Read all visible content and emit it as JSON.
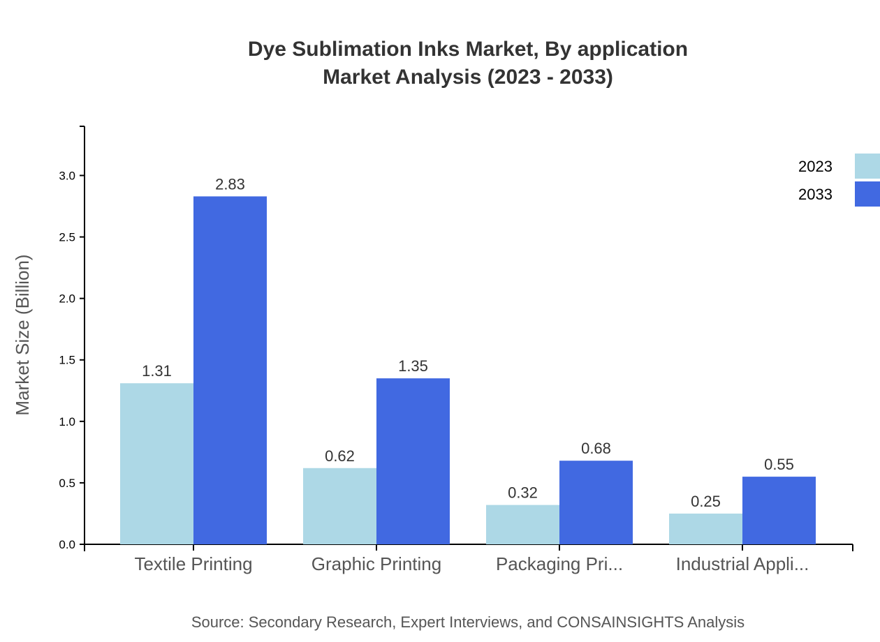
{
  "chart_data": {
    "type": "bar",
    "title": [
      "Dye Sublimation Inks Market, By application",
      "Market Analysis (2023 - 2033)"
    ],
    "xlabel": "",
    "ylabel": "Market Size (Billion)",
    "categories": [
      "Textile Printing",
      "Graphic Printing",
      "Packaging Pri...",
      "Industrial Appli..."
    ],
    "series": [
      {
        "name": "2023",
        "color": "#add8e6",
        "values": [
          1.31,
          0.62,
          0.32,
          0.25
        ]
      },
      {
        "name": "2033",
        "color": "#4169e1",
        "values": [
          2.83,
          1.35,
          0.68,
          0.55
        ]
      }
    ],
    "ylim": [
      0,
      3.4
    ],
    "yticks": [
      "0.0",
      "0.5",
      "1.0",
      "1.5",
      "2.0",
      "2.5",
      "3.0"
    ],
    "grid": false,
    "legend_position": "top-right",
    "source": "Source: Secondary Research, Expert Interviews, and CONSAINSIGHTS Analysis"
  }
}
